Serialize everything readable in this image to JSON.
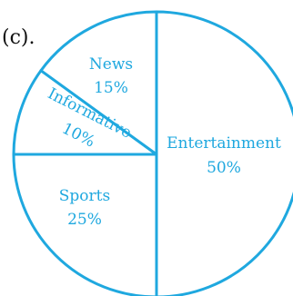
{
  "part_label": "(c).",
  "colors": {
    "line": "#1fa8df",
    "text": "#1fa8df",
    "label": "#111111"
  },
  "chart_data": {
    "type": "pie",
    "slices": [
      {
        "name": "Entertainment",
        "percent_label": "50%",
        "value": 50
      },
      {
        "name": "News",
        "percent_label": "15%",
        "value": 15
      },
      {
        "name": "Informative",
        "percent_label": "10%",
        "value": 10
      },
      {
        "name": "Sports",
        "percent_label": "25%",
        "value": 25
      }
    ]
  }
}
